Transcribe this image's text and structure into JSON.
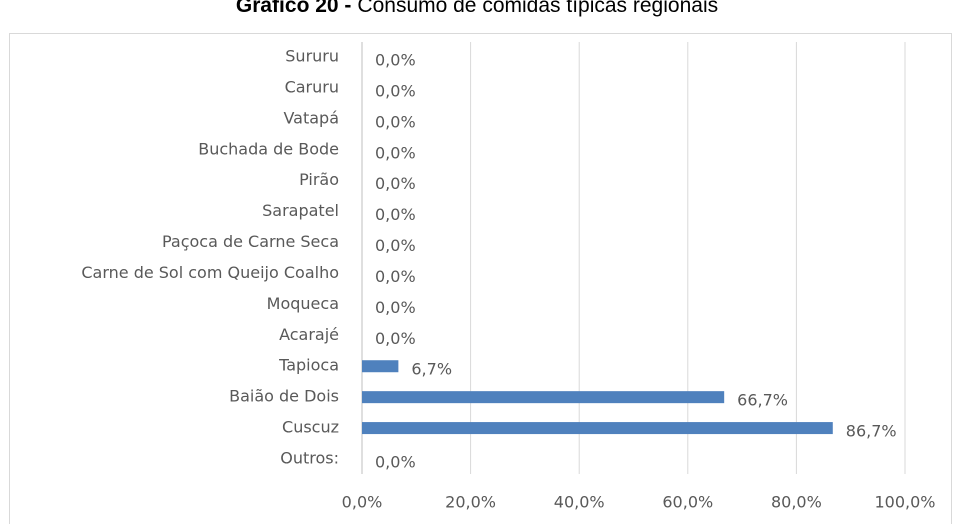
{
  "chart_data": {
    "type": "bar",
    "orientation": "horizontal",
    "title_prefix": "Gráfico 20 -",
    "title": "Consumo de comidas típicas regionais",
    "categories": [
      "Sururu",
      "Caruru",
      "Vatapá",
      "Buchada de Bode",
      "Pirão",
      "Sarapatel",
      "Paçoca de Carne Seca",
      "Carne de Sol com Queijo Coalho",
      "Moqueca",
      "Acarajé",
      "Tapioca",
      "Baião de Dois",
      "Cuscuz",
      "Outros:"
    ],
    "values": [
      0,
      0,
      0,
      0,
      0,
      0,
      0,
      0,
      0,
      0,
      6.7,
      66.7,
      86.7,
      0
    ],
    "value_labels": [
      "0,0%",
      "0,0%",
      "0,0%",
      "0,0%",
      "0,0%",
      "0,0%",
      "0,0%",
      "0,0%",
      "0,0%",
      "0,0%",
      "6,7%",
      "66,7%",
      "86,7%",
      "0,0%"
    ],
    "color": "#4f81bd",
    "xlim": [
      0,
      100
    ],
    "xticks": [
      {
        "value": 0,
        "label": "0,0%"
      },
      {
        "value": 20,
        "label": "20,0%"
      },
      {
        "value": 40,
        "label": "40,0%"
      },
      {
        "value": 60,
        "label": "60,0%"
      },
      {
        "value": 80,
        "label": "80,0%"
      },
      {
        "value": 100,
        "label": "100,0%"
      }
    ],
    "grid": true
  }
}
